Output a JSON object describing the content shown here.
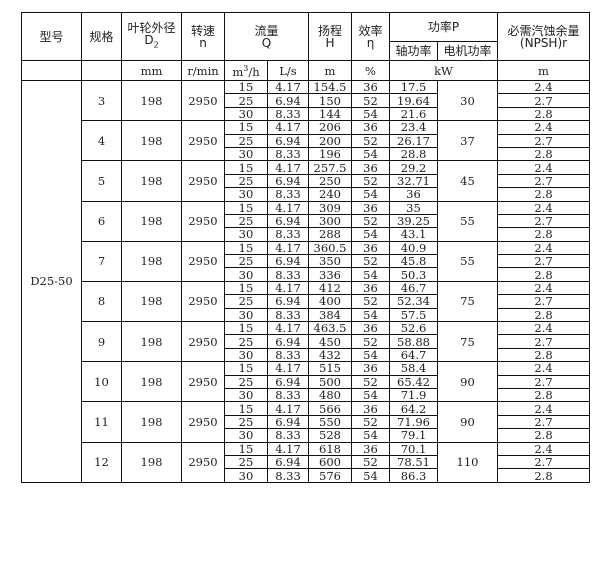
{
  "header": {
    "model": "型号",
    "spec": "规格",
    "impeller": "叶轮外径",
    "impeller_sym": "D",
    "impeller_sub": "2",
    "speed": "转速",
    "speed_sym": "n",
    "flow": "流量",
    "flow_sym": "Q",
    "head": "扬程",
    "head_sym": "H",
    "eff": "效率",
    "eff_sym": "η",
    "power": "功率P",
    "shaft_power": "轴功率",
    "motor_power": "电机功率",
    "npsh": "必需汽蚀余量",
    "npsh_sym": "(NPSH)r"
  },
  "units": {
    "impeller": "mm",
    "speed": "r/min",
    "flow_m3h_base": "m",
    "flow_m3h_sup": "3",
    "flow_m3h_tail": "/h",
    "flow_ls": "L/s",
    "head": "m",
    "eff": "%",
    "power": "kW",
    "npsh": "m"
  },
  "model": "D25-50",
  "groups": [
    {
      "spec": "3",
      "d2": "198",
      "n": "2950",
      "motor": "30",
      "rows": [
        [
          "15",
          "4.17",
          "154.5",
          "36",
          "17.5",
          "2.4"
        ],
        [
          "25",
          "6.94",
          "150",
          "52",
          "19.64",
          "2.7"
        ],
        [
          "30",
          "8.33",
          "144",
          "54",
          "21.6",
          "2.8"
        ]
      ]
    },
    {
      "spec": "4",
      "d2": "198",
      "n": "2950",
      "motor": "37",
      "rows": [
        [
          "15",
          "4.17",
          "206",
          "36",
          "23.4",
          "2.4"
        ],
        [
          "25",
          "6.94",
          "200",
          "52",
          "26.17",
          "2.7"
        ],
        [
          "30",
          "8.33",
          "196",
          "54",
          "28.8",
          "2.8"
        ]
      ]
    },
    {
      "spec": "5",
      "d2": "198",
      "n": "2950",
      "motor": "45",
      "rows": [
        [
          "15",
          "4.17",
          "257.5",
          "36",
          "29.2",
          "2.4"
        ],
        [
          "25",
          "6.94",
          "250",
          "52",
          "32.71",
          "2.7"
        ],
        [
          "30",
          "8.33",
          "240",
          "54",
          "36",
          "2.8"
        ]
      ]
    },
    {
      "spec": "6",
      "d2": "198",
      "n": "2950",
      "motor": "55",
      "rows": [
        [
          "15",
          "4.17",
          "309",
          "36",
          "35",
          "2.4"
        ],
        [
          "25",
          "6.94",
          "300",
          "52",
          "39.25",
          "2.7"
        ],
        [
          "30",
          "8.33",
          "288",
          "54",
          "43.1",
          "2.8"
        ]
      ]
    },
    {
      "spec": "7",
      "d2": "198",
      "n": "2950",
      "motor": "55",
      "rows": [
        [
          "15",
          "4.17",
          "360.5",
          "36",
          "40.9",
          "2.4"
        ],
        [
          "25",
          "6.94",
          "350",
          "52",
          "45.8",
          "2.7"
        ],
        [
          "30",
          "8.33",
          "336",
          "54",
          "50.3",
          "2.8"
        ]
      ]
    },
    {
      "spec": "8",
      "d2": "198",
      "n": "2950",
      "motor": "75",
      "rows": [
        [
          "15",
          "4.17",
          "412",
          "36",
          "46.7",
          "2.4"
        ],
        [
          "25",
          "6.94",
          "400",
          "52",
          "52.34",
          "2.7"
        ],
        [
          "30",
          "8.33",
          "384",
          "54",
          "57.5",
          "2.8"
        ]
      ]
    },
    {
      "spec": "9",
      "d2": "198",
      "n": "2950",
      "motor": "75",
      "rows": [
        [
          "15",
          "4.17",
          "463.5",
          "36",
          "52.6",
          "2.4"
        ],
        [
          "25",
          "6.94",
          "450",
          "52",
          "58.88",
          "2.7"
        ],
        [
          "30",
          "8.33",
          "432",
          "54",
          "64.7",
          "2.8"
        ]
      ]
    },
    {
      "spec": "10",
      "d2": "198",
      "n": "2950",
      "motor": "90",
      "rows": [
        [
          "15",
          "4.17",
          "515",
          "36",
          "58.4",
          "2.4"
        ],
        [
          "25",
          "6.94",
          "500",
          "52",
          "65.42",
          "2.7"
        ],
        [
          "30",
          "8.33",
          "480",
          "54",
          "71.9",
          "2.8"
        ]
      ]
    },
    {
      "spec": "11",
      "d2": "198",
      "n": "2950",
      "motor": "90",
      "rows": [
        [
          "15",
          "4.17",
          "566",
          "36",
          "64.2",
          "2.4"
        ],
        [
          "25",
          "6.94",
          "550",
          "52",
          "71.96",
          "2.7"
        ],
        [
          "30",
          "8.33",
          "528",
          "54",
          "79.1",
          "2.8"
        ]
      ]
    },
    {
      "spec": "12",
      "d2": "198",
      "n": "2950",
      "motor": "110",
      "rows": [
        [
          "15",
          "4.17",
          "618",
          "36",
          "70.1",
          "2.4"
        ],
        [
          "25",
          "6.94",
          "600",
          "52",
          "78.51",
          "2.7"
        ],
        [
          "30",
          "8.33",
          "576",
          "54",
          "86.3",
          "2.8"
        ]
      ]
    }
  ]
}
